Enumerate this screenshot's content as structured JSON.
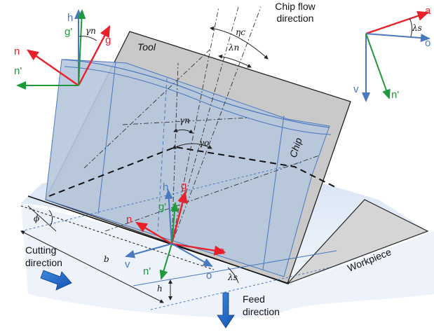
{
  "texts": {
    "chip_flow": [
      "Chip flow",
      "direction"
    ],
    "tool": "Tool",
    "chip": "Chip",
    "workpiece": "Workpiece",
    "cutting": [
      "Cutting",
      "direction"
    ],
    "feed": [
      "Feed",
      "direction"
    ]
  },
  "vectors": {
    "h": "h",
    "g": "g",
    "g_prime": "g'",
    "n": "n",
    "n_prime": "n'",
    "a": "a",
    "o": "o",
    "v": "v"
  },
  "symbols": {
    "gamma_n": "γn",
    "gamma_o": "γo",
    "eta_c": "ηc",
    "lambda_n": "λn",
    "lambda_s": "λs",
    "phi": "ϕ",
    "b": "b",
    "h": "h"
  },
  "colors": {
    "red": "#e8202a",
    "green": "#1e9a3c",
    "blue": "#4a78bf",
    "tool_fill": "#c9c9c9",
    "chip_fill": "#b9c7dc",
    "work_fill": "#dfe8f5"
  }
}
